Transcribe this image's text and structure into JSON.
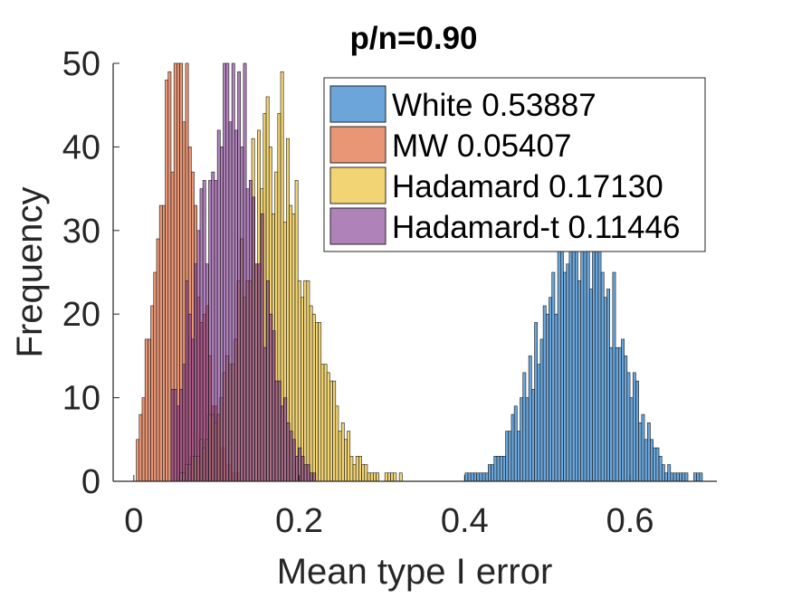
{
  "chart_data": {
    "type": "histogram",
    "title": "p/n=0.90",
    "xlabel": "Mean type I error",
    "ylabel": "Frequency",
    "xlim": [
      -0.025,
      0.705
    ],
    "ylim": [
      0,
      50
    ],
    "xticks": [
      0,
      0.2,
      0.4,
      0.6
    ],
    "xtick_labels": [
      "0",
      "0.2",
      "0.4",
      "0.6"
    ],
    "yticks": [
      0,
      10,
      20,
      30,
      40,
      50
    ],
    "ytick_labels": [
      "0",
      "10",
      "20",
      "30",
      "40",
      "50"
    ],
    "bin_width": 0.0035,
    "legend_position": "top-right",
    "series": [
      {
        "name": "White 0.53887",
        "color": "#5b9bd5",
        "opacity": 0.9,
        "mean": 0.53887,
        "sd": 0.045,
        "peak": 31,
        "range": [
          0.39,
          0.69
        ]
      },
      {
        "name": "MW 0.05407",
        "color": "#e27c52",
        "opacity": 0.8,
        "mean": 0.05407,
        "sd": 0.025,
        "peak": 46,
        "range": [
          0.003,
          0.14
        ]
      },
      {
        "name": "Hadamard 0.17130",
        "color": "#edc23b",
        "opacity": 0.7,
        "mean": 0.1713,
        "sd": 0.042,
        "peak": 40,
        "range": [
          0.055,
          0.33
        ]
      },
      {
        "name": "Hadamard-t 0.11446",
        "color": "#7a2f8c",
        "opacity": 0.6,
        "mean": 0.11446,
        "sd": 0.038,
        "peak": 45,
        "range": [
          0.045,
          0.22
        ]
      }
    ]
  }
}
